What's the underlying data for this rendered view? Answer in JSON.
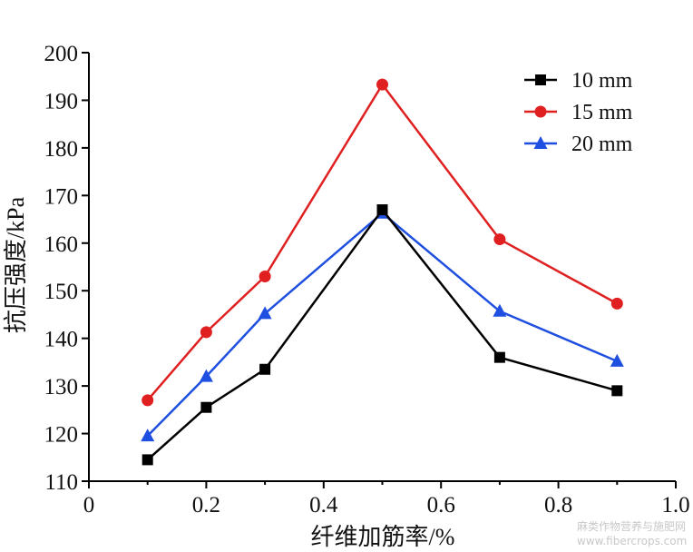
{
  "chart_data": {
    "type": "line",
    "title": "",
    "xlabel": "纤维加筋率/%",
    "ylabel": "抗压强度/kPa",
    "xlim": [
      0,
      1.0
    ],
    "ylim": [
      110,
      200
    ],
    "xticks": [
      0,
      0.2,
      0.4,
      0.6,
      0.8,
      1.0
    ],
    "xtick_labels": [
      "0",
      "0.2",
      "0.4",
      "0.6",
      "0.8",
      "1.0"
    ],
    "yticks": [
      110,
      120,
      130,
      140,
      150,
      160,
      170,
      180,
      190,
      200
    ],
    "ytick_labels": [
      "110",
      "120",
      "130",
      "140",
      "150",
      "160",
      "170",
      "180",
      "190",
      "200"
    ],
    "grid": false,
    "legend_position": "top-right",
    "x": [
      0.1,
      0.2,
      0.3,
      0.5,
      0.7,
      0.9
    ],
    "series": [
      {
        "name": "10 mm",
        "color": "#000000",
        "marker": "square",
        "values": [
          114.5,
          125.5,
          133.5,
          167.0,
          136.0,
          129.0
        ]
      },
      {
        "name": "15 mm",
        "color": "#e02020",
        "marker": "circle",
        "values": [
          127.0,
          141.3,
          153.0,
          193.3,
          160.8,
          147.3
        ]
      },
      {
        "name": "20 mm",
        "color": "#1f4fe0",
        "marker": "triangle",
        "values": [
          119.5,
          132.0,
          145.2,
          166.3,
          145.7,
          135.2
        ]
      }
    ]
  },
  "watermark": {
    "line1": "麻类作物营养与施肥网",
    "line2": "www.fibercrops.com"
  }
}
